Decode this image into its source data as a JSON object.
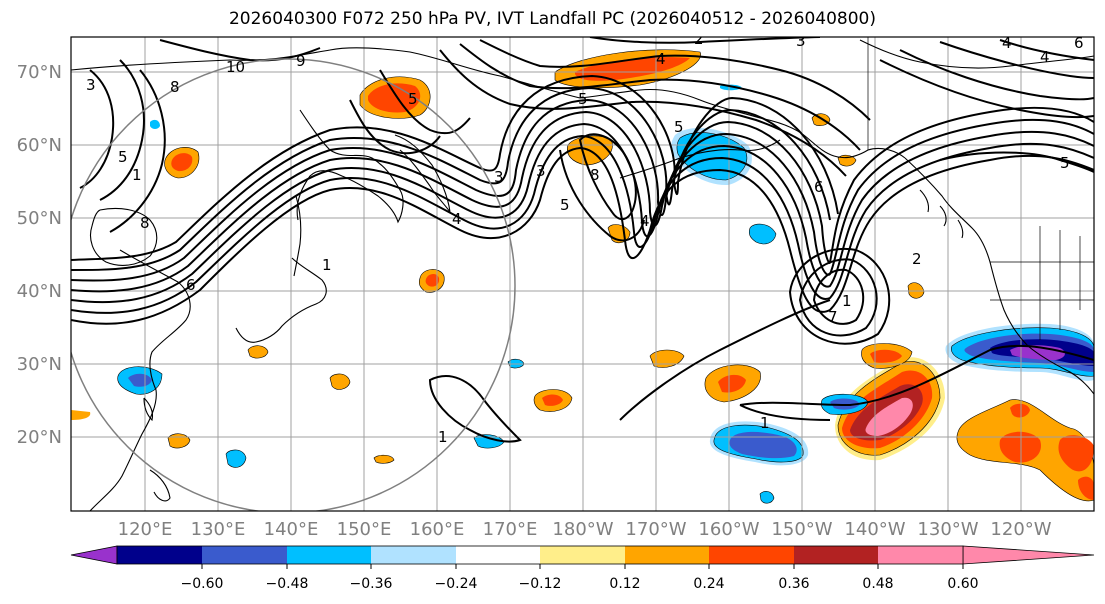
{
  "title": "2026040300 F072 250 hPa PV, IVT Landfall PC (2026040512 - 2026040800)",
  "map": {
    "lon_labels": [
      "120°E",
      "130°E",
      "140°E",
      "150°E",
      "160°E",
      "170°E",
      "180°W",
      "170°W",
      "160°W",
      "150°W",
      "140°W",
      "130°W",
      "120°W"
    ],
    "lat_labels": [
      "70°N",
      "60°N",
      "50°N",
      "40°N",
      "30°N",
      "20°N"
    ],
    "contour_labels": [
      "10",
      "9",
      "8",
      "3",
      "5",
      "1",
      "5",
      "3",
      "8",
      "4",
      "2",
      "4",
      "3",
      "4",
      "5",
      "3",
      "5",
      "6",
      "4",
      "5",
      "8",
      "6",
      "1",
      "1",
      "7",
      "1",
      "1",
      "2",
      "5",
      "4",
      "6"
    ]
  },
  "colorbar": {
    "colors": [
      "#9932cc",
      "#00008b",
      "#3a5bcd",
      "#00bfff",
      "#b0e2ff",
      "#ffffff",
      "#ffee8a",
      "#ffa500",
      "#ff4500",
      "#b22222",
      "#ff88aa"
    ],
    "tick_labels": [
      "−0.60",
      "−0.48",
      "−0.36",
      "−0.24",
      "−0.12",
      "0.12",
      "0.24",
      "0.36",
      "0.48",
      "0.60"
    ]
  },
  "colors": {
    "contour": "#000000",
    "grid": "#a0a0a0",
    "axis_label": "#808080",
    "circle": "#808080"
  }
}
